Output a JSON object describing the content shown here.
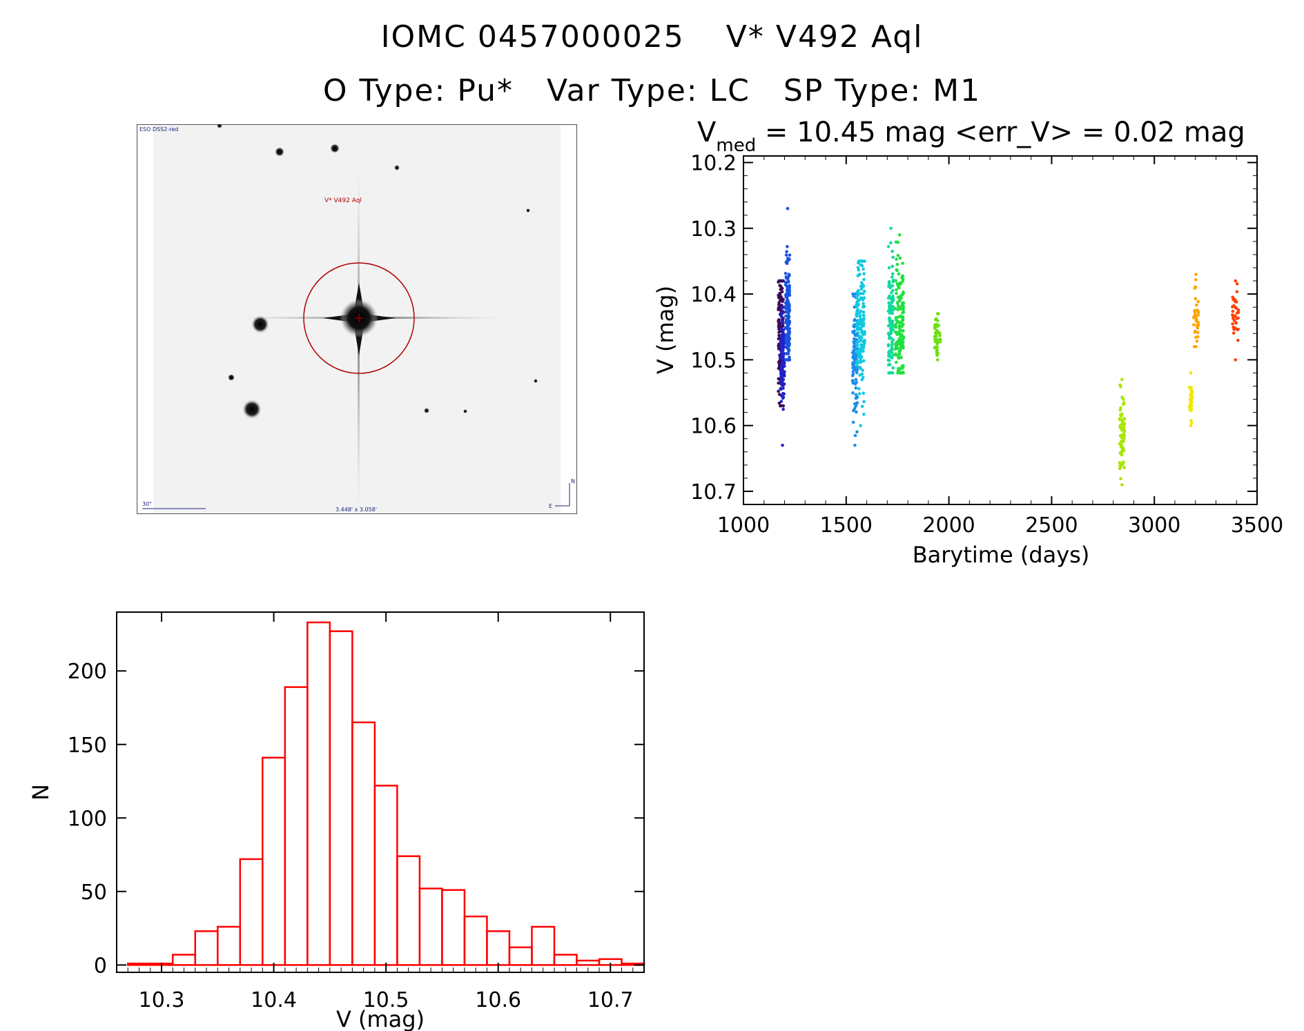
{
  "header": {
    "id": "IOMC 0457000025",
    "star_name": "V* V492 Aql",
    "o_type": "O Type: Pu*",
    "var_type": "Var Type: LC",
    "sp_type": "SP Type: M1"
  },
  "finder": {
    "survey": "ESO DSS2-red",
    "target_label": "V* V492 Aql",
    "scale_label": "30\"",
    "fov_label": "3.448' x 3.058'",
    "north_label": "N",
    "east_label": "E"
  },
  "lightcurve": {
    "title_prefix": "V",
    "title_sub": "med",
    "title_rest": " = 10.45 mag <err_V> = 0.02 mag",
    "xlabel": "Barytime (days)",
    "ylabel": "V (mag)"
  },
  "histogram": {
    "xlabel": "V (mag)",
    "ylabel": "N"
  },
  "chart_data": [
    {
      "type": "scatter",
      "name": "light-curve",
      "title": "Vmed = 10.45 mag <err_V> = 0.02 mag",
      "xlabel": "Barytime (days)",
      "ylabel": "V (mag)",
      "xlim": [
        1000,
        3500
      ],
      "ylim": [
        10.72,
        10.19
      ],
      "y_inverted": true,
      "x_ticks": [
        1000,
        1500,
        2000,
        2500,
        3000,
        3500
      ],
      "x_tick_labels": [
        "1000",
        "1500",
        "2000",
        "2500",
        "3000",
        "3500"
      ],
      "y_ticks": [
        10.2,
        10.3,
        10.4,
        10.5,
        10.6,
        10.7
      ],
      "y_tick_labels": [
        "10.2",
        "10.3",
        "10.4",
        "10.5",
        "10.6",
        "10.7"
      ],
      "clusters": [
        {
          "x_min": 1170,
          "x_max": 1195,
          "y_center": 10.46,
          "y_spread": 0.05,
          "y_min": 10.38,
          "y_max": 10.57,
          "count": 140,
          "color": "#3c0a5a"
        },
        {
          "x_min": 1180,
          "x_max": 1200,
          "y_center": 10.5,
          "y_spread": 0.04,
          "y_min": 10.42,
          "y_max": 10.63,
          "count": 100,
          "color": "#2222c8"
        },
        {
          "x_min": 1205,
          "x_max": 1225,
          "y_center": 10.43,
          "y_spread": 0.05,
          "y_min": 10.27,
          "y_max": 10.5,
          "count": 170,
          "color": "#1a55e0"
        },
        {
          "x_min": 1530,
          "x_max": 1555,
          "y_center": 10.5,
          "y_spread": 0.05,
          "y_min": 10.4,
          "y_max": 10.63,
          "count": 90,
          "color": "#1c8ce8"
        },
        {
          "x_min": 1550,
          "x_max": 1590,
          "y_center": 10.45,
          "y_spread": 0.05,
          "y_min": 10.35,
          "y_max": 10.6,
          "count": 160,
          "color": "#12c8e0"
        },
        {
          "x_min": 1705,
          "x_max": 1730,
          "y_center": 10.44,
          "y_spread": 0.05,
          "y_min": 10.3,
          "y_max": 10.52,
          "count": 110,
          "color": "#14d8a0"
        },
        {
          "x_min": 1740,
          "x_max": 1780,
          "y_center": 10.45,
          "y_spread": 0.05,
          "y_min": 10.31,
          "y_max": 10.52,
          "count": 160,
          "color": "#20e040"
        },
        {
          "x_min": 1930,
          "x_max": 1960,
          "y_center": 10.47,
          "y_spread": 0.015,
          "y_min": 10.43,
          "y_max": 10.5,
          "count": 40,
          "color": "#6ce010"
        },
        {
          "x_min": 2830,
          "x_max": 2855,
          "y_center": 10.62,
          "y_spread": 0.03,
          "y_min": 10.53,
          "y_max": 10.69,
          "count": 80,
          "color": "#a8e600"
        },
        {
          "x_min": 3170,
          "x_max": 3185,
          "y_center": 10.56,
          "y_spread": 0.015,
          "y_min": 10.52,
          "y_max": 10.6,
          "count": 30,
          "color": "#f0e800"
        },
        {
          "x_min": 3190,
          "x_max": 3215,
          "y_center": 10.43,
          "y_spread": 0.02,
          "y_min": 10.37,
          "y_max": 10.48,
          "count": 35,
          "color": "#ffa500"
        },
        {
          "x_min": 3380,
          "x_max": 3410,
          "y_center": 10.43,
          "y_spread": 0.02,
          "y_min": 10.38,
          "y_max": 10.5,
          "count": 35,
          "color": "#ff4000"
        }
      ]
    },
    {
      "type": "bar",
      "name": "histogram",
      "xlabel": "V (mag)",
      "ylabel": "N",
      "xlim": [
        10.26,
        10.73
      ],
      "ylim": [
        -5,
        240
      ],
      "bin_width": 0.02,
      "bin_edges_start": 10.27,
      "counts": [
        1,
        1,
        7,
        23,
        26,
        72,
        141,
        189,
        233,
        227,
        165,
        122,
        74,
        52,
        51,
        33,
        23,
        12,
        26,
        7,
        3,
        4,
        1
      ],
      "x_ticks": [
        10.3,
        10.4,
        10.5,
        10.6,
        10.7
      ],
      "x_tick_labels": [
        "10.3",
        "10.4",
        "10.5",
        "10.6",
        "10.7"
      ],
      "y_ticks": [
        0,
        50,
        100,
        150,
        200
      ],
      "y_tick_labels": [
        "0",
        "50",
        "100",
        "150",
        "200"
      ],
      "color": "#ff0000"
    }
  ]
}
